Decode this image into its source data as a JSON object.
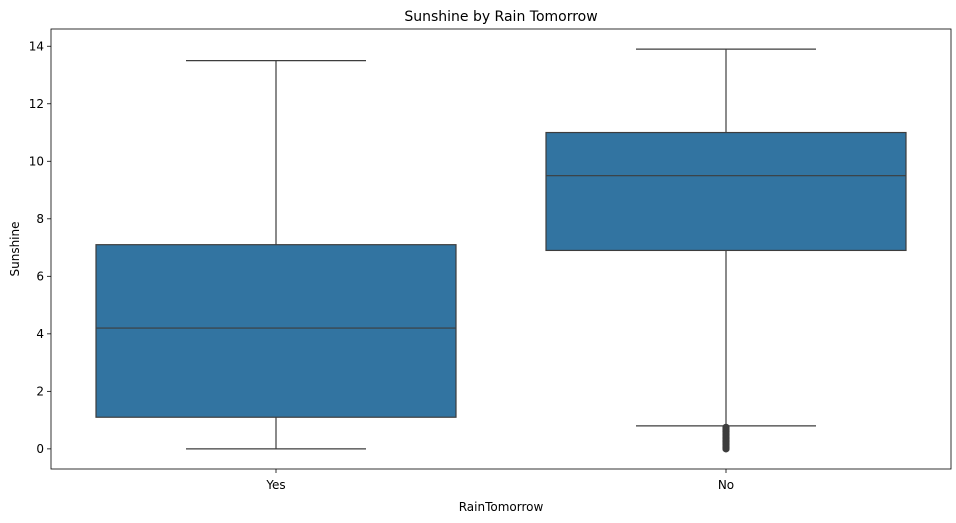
{
  "chart_data": {
    "type": "box",
    "title": "Sunshine by Rain Tomorrow",
    "xlabel": "RainTomorrow",
    "ylabel": "Sunshine",
    "categories": [
      "Yes",
      "No"
    ],
    "ylim": [
      -0.7,
      14.6
    ],
    "yticks": [
      0,
      2,
      4,
      6,
      8,
      10,
      12,
      14
    ],
    "grid": false,
    "legend": "none",
    "color": "#3274a1",
    "line_color": "#3d3d3d",
    "boxes": [
      {
        "category": "Yes",
        "whisker_low": 0.0,
        "q1": 1.1,
        "median": 4.2,
        "q3": 7.1,
        "whisker_high": 13.5,
        "outliers": []
      },
      {
        "category": "No",
        "whisker_low": 0.8,
        "q1": 6.9,
        "median": 9.5,
        "q3": 11.0,
        "whisker_high": 13.9,
        "outliers": [
          0.0,
          0.05,
          0.1,
          0.15,
          0.2,
          0.25,
          0.3,
          0.35,
          0.4,
          0.45,
          0.5,
          0.55,
          0.6,
          0.65,
          0.7,
          0.75
        ]
      }
    ]
  }
}
